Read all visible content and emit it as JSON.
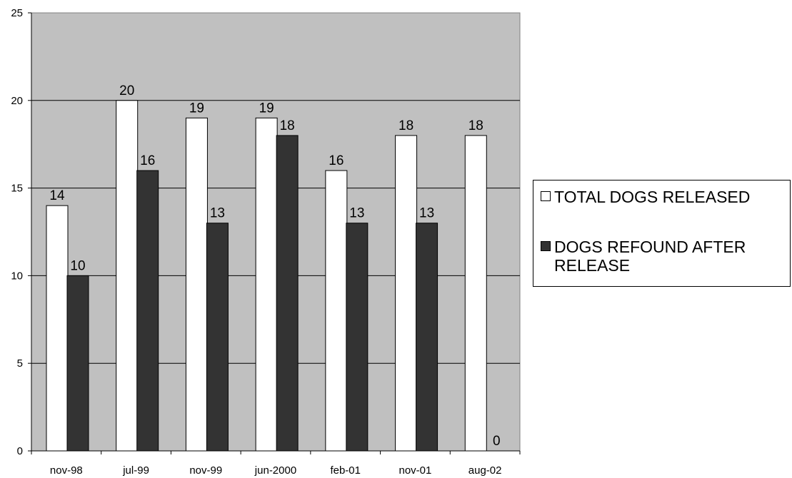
{
  "chart_data": {
    "type": "bar",
    "categories": [
      "nov-98",
      "jul-99",
      "nov-99",
      "jun-2000",
      "feb-01",
      "nov-01",
      "aug-02"
    ],
    "series": [
      {
        "name": "TOTAL DOGS RELEASED",
        "values": [
          14,
          20,
          19,
          19,
          16,
          18,
          18
        ],
        "color": "#ffffff"
      },
      {
        "name": "DOGS REFOUND  AFTER RELEASE",
        "values": [
          10,
          16,
          13,
          18,
          13,
          13,
          0
        ],
        "color": "#333333"
      }
    ],
    "ylim": [
      0,
      25
    ],
    "yticks": [
      0,
      5,
      10,
      15,
      20,
      25
    ],
    "grid": true,
    "plot_background": "#c0c0c0",
    "legend_position": "right"
  }
}
